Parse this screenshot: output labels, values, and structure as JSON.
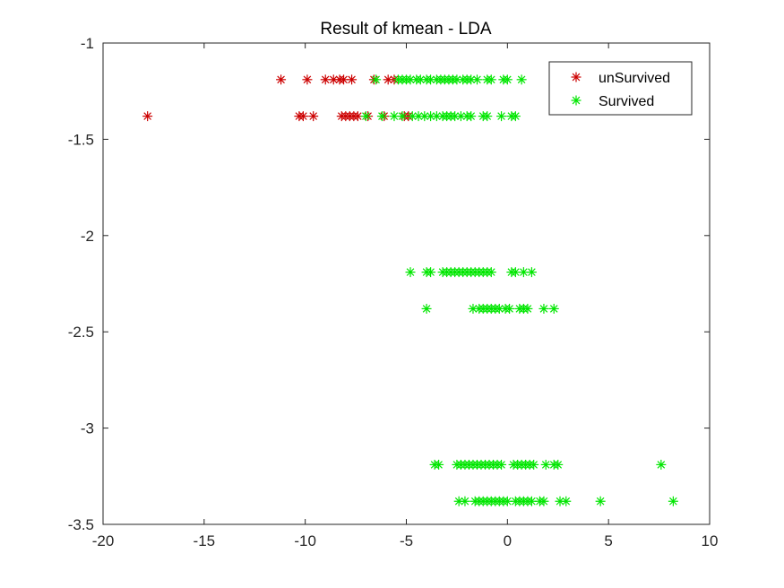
{
  "chart_data": {
    "type": "scatter",
    "title": "Result of kmean - LDA",
    "xlabel": "",
    "ylabel": "",
    "xlim": [
      -20,
      10
    ],
    "ylim": [
      -3.5,
      -1
    ],
    "x_ticks": [
      -20,
      -15,
      -10,
      -5,
      0,
      5,
      10
    ],
    "y_ticks": [
      -1,
      -1.5,
      -2,
      -2.5,
      -3,
      -3.5
    ],
    "x_tick_labels": [
      "-20",
      "-15",
      "-10",
      "-5",
      "0",
      "5",
      "10"
    ],
    "y_tick_labels": [
      "-1",
      "-1.5",
      "-2",
      "-2.5",
      "-3",
      "-3.5"
    ],
    "grid": false,
    "legend_position": "top-right",
    "marker": "asterisk",
    "series": [
      {
        "name": "unSurvived",
        "color": "#cc0000",
        "points": [
          [
            -11.2,
            -1.19
          ],
          [
            -9.9,
            -1.19
          ],
          [
            -9.0,
            -1.19
          ],
          [
            -8.6,
            -1.19
          ],
          [
            -8.3,
            -1.19
          ],
          [
            -8.1,
            -1.19
          ],
          [
            -7.7,
            -1.19
          ],
          [
            -6.6,
            -1.19
          ],
          [
            -5.9,
            -1.19
          ],
          [
            -5.6,
            -1.19
          ],
          [
            -17.8,
            -1.38
          ],
          [
            -10.3,
            -1.38
          ],
          [
            -10.1,
            -1.38
          ],
          [
            -9.6,
            -1.38
          ],
          [
            -8.2,
            -1.38
          ],
          [
            -8.0,
            -1.38
          ],
          [
            -7.8,
            -1.38
          ],
          [
            -7.6,
            -1.38
          ],
          [
            -7.4,
            -1.38
          ],
          [
            -6.9,
            -1.38
          ],
          [
            -6.1,
            -1.38
          ],
          [
            -5.1,
            -1.38
          ],
          [
            -4.9,
            -1.38
          ]
        ]
      },
      {
        "name": "Survived",
        "color": "#00e600",
        "points": [
          [
            -6.5,
            -1.19
          ],
          [
            -5.4,
            -1.19
          ],
          [
            -5.2,
            -1.19
          ],
          [
            -5.0,
            -1.19
          ],
          [
            -4.8,
            -1.19
          ],
          [
            -4.5,
            -1.19
          ],
          [
            -4.3,
            -1.19
          ],
          [
            -4.0,
            -1.19
          ],
          [
            -3.8,
            -1.19
          ],
          [
            -3.5,
            -1.19
          ],
          [
            -3.3,
            -1.19
          ],
          [
            -3.1,
            -1.19
          ],
          [
            -2.9,
            -1.19
          ],
          [
            -2.7,
            -1.19
          ],
          [
            -2.5,
            -1.19
          ],
          [
            -2.2,
            -1.19
          ],
          [
            -2.0,
            -1.19
          ],
          [
            -1.8,
            -1.19
          ],
          [
            -1.5,
            -1.19
          ],
          [
            -1.0,
            -1.19
          ],
          [
            -0.8,
            -1.19
          ],
          [
            -0.2,
            -1.19
          ],
          [
            0.0,
            -1.19
          ],
          [
            0.7,
            -1.19
          ],
          [
            -7.0,
            -1.38
          ],
          [
            -6.2,
            -1.38
          ],
          [
            -5.6,
            -1.38
          ],
          [
            -5.2,
            -1.38
          ],
          [
            -4.7,
            -1.38
          ],
          [
            -4.4,
            -1.38
          ],
          [
            -4.1,
            -1.38
          ],
          [
            -3.8,
            -1.38
          ],
          [
            -3.5,
            -1.38
          ],
          [
            -3.2,
            -1.38
          ],
          [
            -3.0,
            -1.38
          ],
          [
            -2.8,
            -1.38
          ],
          [
            -2.6,
            -1.38
          ],
          [
            -2.3,
            -1.38
          ],
          [
            -2.0,
            -1.38
          ],
          [
            -1.8,
            -1.38
          ],
          [
            -1.2,
            -1.38
          ],
          [
            -1.0,
            -1.38
          ],
          [
            -0.3,
            -1.38
          ],
          [
            0.2,
            -1.38
          ],
          [
            0.4,
            -1.38
          ],
          [
            -4.8,
            -2.19
          ],
          [
            -4.0,
            -2.19
          ],
          [
            -3.8,
            -2.19
          ],
          [
            -3.2,
            -2.19
          ],
          [
            -3.0,
            -2.19
          ],
          [
            -2.8,
            -2.19
          ],
          [
            -2.6,
            -2.19
          ],
          [
            -2.4,
            -2.19
          ],
          [
            -2.2,
            -2.19
          ],
          [
            -2.0,
            -2.19
          ],
          [
            -1.8,
            -2.19
          ],
          [
            -1.6,
            -2.19
          ],
          [
            -1.4,
            -2.19
          ],
          [
            -1.2,
            -2.19
          ],
          [
            -1.0,
            -2.19
          ],
          [
            -0.8,
            -2.19
          ],
          [
            0.2,
            -2.19
          ],
          [
            0.4,
            -2.19
          ],
          [
            0.8,
            -2.19
          ],
          [
            1.2,
            -2.19
          ],
          [
            -4.0,
            -2.38
          ],
          [
            -1.7,
            -2.38
          ],
          [
            -1.4,
            -2.38
          ],
          [
            -1.2,
            -2.38
          ],
          [
            -1.0,
            -2.38
          ],
          [
            -0.8,
            -2.38
          ],
          [
            -0.6,
            -2.38
          ],
          [
            -0.4,
            -2.38
          ],
          [
            -0.1,
            -2.38
          ],
          [
            0.1,
            -2.38
          ],
          [
            0.6,
            -2.38
          ],
          [
            0.8,
            -2.38
          ],
          [
            1.0,
            -2.38
          ],
          [
            1.8,
            -2.38
          ],
          [
            2.3,
            -2.38
          ],
          [
            -3.6,
            -3.19
          ],
          [
            -3.4,
            -3.19
          ],
          [
            -2.5,
            -3.19
          ],
          [
            -2.3,
            -3.19
          ],
          [
            -2.1,
            -3.19
          ],
          [
            -1.9,
            -3.19
          ],
          [
            -1.7,
            -3.19
          ],
          [
            -1.5,
            -3.19
          ],
          [
            -1.3,
            -3.19
          ],
          [
            -1.1,
            -3.19
          ],
          [
            -0.9,
            -3.19
          ],
          [
            -0.7,
            -3.19
          ],
          [
            -0.5,
            -3.19
          ],
          [
            -0.3,
            -3.19
          ],
          [
            0.3,
            -3.19
          ],
          [
            0.5,
            -3.19
          ],
          [
            0.7,
            -3.19
          ],
          [
            0.9,
            -3.19
          ],
          [
            1.1,
            -3.19
          ],
          [
            1.3,
            -3.19
          ],
          [
            1.9,
            -3.19
          ],
          [
            2.3,
            -3.19
          ],
          [
            2.5,
            -3.19
          ],
          [
            7.6,
            -3.19
          ],
          [
            -2.4,
            -3.38
          ],
          [
            -2.1,
            -3.38
          ],
          [
            -1.6,
            -3.38
          ],
          [
            -1.4,
            -3.38
          ],
          [
            -1.2,
            -3.38
          ],
          [
            -1.0,
            -3.38
          ],
          [
            -0.8,
            -3.38
          ],
          [
            -0.6,
            -3.38
          ],
          [
            -0.4,
            -3.38
          ],
          [
            -0.2,
            -3.38
          ],
          [
            0.0,
            -3.38
          ],
          [
            0.4,
            -3.38
          ],
          [
            0.6,
            -3.38
          ],
          [
            0.8,
            -3.38
          ],
          [
            1.0,
            -3.38
          ],
          [
            1.2,
            -3.38
          ],
          [
            1.6,
            -3.38
          ],
          [
            1.8,
            -3.38
          ],
          [
            2.6,
            -3.38
          ],
          [
            2.9,
            -3.38
          ],
          [
            4.6,
            -3.38
          ],
          [
            8.2,
            -3.38
          ]
        ]
      }
    ]
  }
}
